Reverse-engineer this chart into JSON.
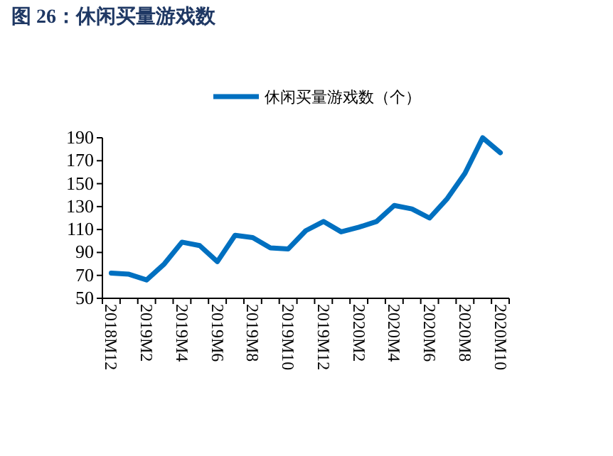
{
  "chart_data": {
    "type": "line",
    "title": "图 26：休闲买量游戏数",
    "categories": [
      "2018M12",
      null,
      "2019M2",
      null,
      "2019M4",
      null,
      "2019M6",
      null,
      "2019M8",
      null,
      "2019M10",
      null,
      "2019M12",
      null,
      "2020M2",
      null,
      "2020M4",
      null,
      "2020M6",
      null,
      "2020M8",
      null,
      "2020M10"
    ],
    "series": [
      {
        "name": "休闲买量游戏数（个）",
        "color": "#0070c0",
        "values": [
          72,
          71,
          66,
          80,
          99,
          96,
          82,
          105,
          103,
          94,
          93,
          109,
          117,
          108,
          112,
          117,
          131,
          128,
          120,
          137,
          159,
          190,
          177
        ]
      }
    ],
    "ylim": [
      50,
      190
    ],
    "yticks": [
      50,
      70,
      90,
      110,
      130,
      150,
      170,
      190
    ],
    "grid": false,
    "legend": "top",
    "marker": "none",
    "line_style": "solid"
  }
}
